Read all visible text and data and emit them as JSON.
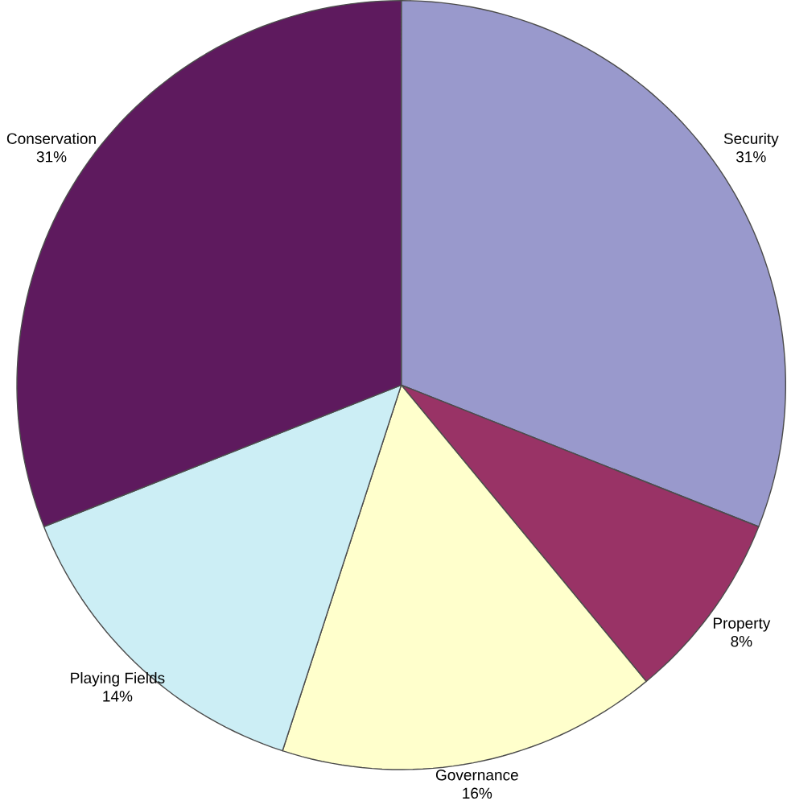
{
  "chart_data": {
    "type": "pie",
    "categories": [
      "Security",
      "Property",
      "Governance",
      "Playing Fields",
      "Conservation"
    ],
    "values": [
      31,
      8,
      16,
      14,
      31
    ],
    "value_labels": [
      "31%",
      "8%",
      "16%",
      "14%",
      "31%"
    ],
    "colors": [
      "#9999cc",
      "#993366",
      "#ffffcc",
      "#cceef5",
      "#5e1a5e"
    ]
  }
}
